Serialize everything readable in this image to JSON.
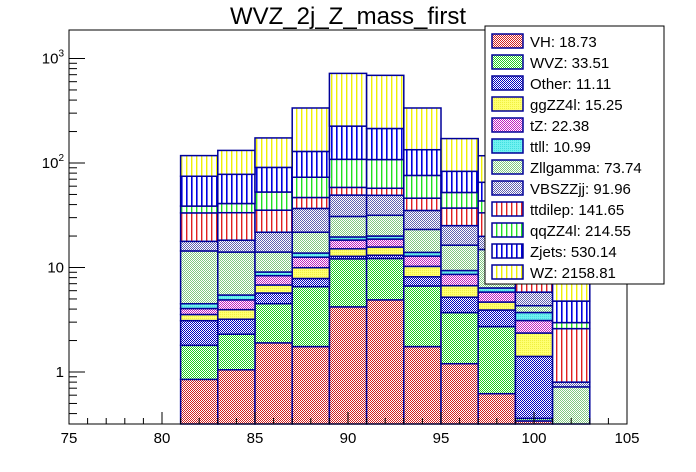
{
  "chart_data": {
    "type": "bar",
    "stacked": true,
    "title": "WVZ_2j_Z_mass_first",
    "xlabel": "",
    "ylabel": "",
    "xlim": [
      75,
      105
    ],
    "ylim": [
      0.32,
      1200
    ],
    "yscale": "log",
    "x_ticks": [
      "75",
      "80",
      "85",
      "90",
      "95",
      "100",
      "105"
    ],
    "y_ticks": [
      {
        "value": 1,
        "label": "1"
      },
      {
        "value": 10,
        "label": "10"
      },
      {
        "value": 100,
        "base": "10",
        "exp": "2"
      },
      {
        "value": 1000,
        "base": "10",
        "exp": "3"
      }
    ],
    "bin_edges": [
      81,
      83,
      85,
      87,
      89,
      91,
      93,
      95,
      97,
      99,
      101,
      103
    ],
    "legend_position": "top-right",
    "series": [
      {
        "name": "VH",
        "legend": "VH: 18.73",
        "color": "#e05050",
        "pattern": "check-red",
        "values": [
          0.85,
          1.05,
          1.9,
          1.75,
          4.2,
          4.9,
          1.75,
          1.2,
          0.62,
          0.34,
          0
        ]
      },
      {
        "name": "WVZ",
        "legend": "WVZ: 33.51",
        "color": "#40e040",
        "pattern": "check-green",
        "values": [
          0.95,
          1.25,
          2.6,
          4.8,
          7.9,
          7.3,
          4.9,
          2.5,
          2.1,
          0.02,
          0.0
        ]
      },
      {
        "name": "Other",
        "legend": "Other: 11.11",
        "color": "#2020c0",
        "pattern": "check-blue",
        "values": [
          1.3,
          0.9,
          1.2,
          1.3,
          0.7,
          0.9,
          1.5,
          1.5,
          1.2,
          1.05,
          0
        ]
      },
      {
        "name": "ggZZ4l",
        "legend": "ggZZ4l: 15.25",
        "color": "#ffff60",
        "pattern": "solid-yellow",
        "values": [
          0.45,
          0.75,
          1.1,
          2.1,
          2.3,
          2.6,
          2.1,
          1.5,
          0.75,
          0.95,
          0
        ]
      },
      {
        "name": "tZ",
        "legend": "tZ: 22.38",
        "color": "#d050d0",
        "pattern": "check-magenta",
        "values": [
          0.5,
          0.95,
          1.55,
          2.6,
          3.2,
          3.0,
          2.6,
          1.9,
          1.15,
          0.75,
          0
        ]
      },
      {
        "name": "ttll",
        "legend": "ttll: 10.99",
        "color": "#50e8e8",
        "pattern": "solid-cyan",
        "values": [
          0.45,
          0.55,
          0.7,
          1.2,
          1.3,
          1.3,
          1.1,
          0.75,
          0.55,
          0.6,
          0
        ]
      },
      {
        "name": "Zllgamma",
        "legend": "Zllgamma: 73.74",
        "color": "#a0d8a0",
        "pattern": "check-lightgreen",
        "values": [
          9.9,
          8.6,
          5.0,
          8.0,
          11.2,
          11.6,
          9.2,
          7.0,
          8.5,
          0.6,
          0.72
        ]
      },
      {
        "name": "VBSZZjj",
        "legend": "VBSZZjj: 91.96",
        "color": "#8080c8",
        "pattern": "check-slate",
        "values": [
          3.4,
          4.2,
          7.7,
          15.0,
          18.5,
          17.5,
          12.0,
          8.8,
          5.0,
          1.5,
          0.08
        ]
      },
      {
        "name": "ttdilep",
        "legend": "ttdilep: 141.65",
        "color": "#e03030",
        "pattern": "vlines-red",
        "values": [
          15.5,
          15.2,
          13.6,
          10.0,
          9.1,
          8.2,
          10.9,
          11.9,
          13.5,
          28,
          1.8
        ]
      },
      {
        "name": "qqZZ4l",
        "legend": "qqZZ4l: 214.55",
        "color": "#30e030",
        "pattern": "vlines-green",
        "values": [
          5.4,
          7.5,
          17.4,
          26.3,
          50.0,
          50.6,
          30.0,
          15.2,
          10.0,
          8,
          0.37
        ]
      },
      {
        "name": "Zjets",
        "legend": "Zjets: 530.14",
        "color": "#1010e0",
        "pattern": "vlines-blue",
        "values": [
          36,
          37,
          38,
          56,
          117,
          106,
          58,
          31,
          22,
          24,
          1.8
        ]
      },
      {
        "name": "WZ",
        "legend": "WZ: 2158.81",
        "color": "#ffff40",
        "pattern": "vlines-yellow",
        "values": [
          43,
          54,
          83,
          207,
          495,
          476,
          202,
          88,
          52,
          40,
          2.5
        ]
      }
    ]
  }
}
